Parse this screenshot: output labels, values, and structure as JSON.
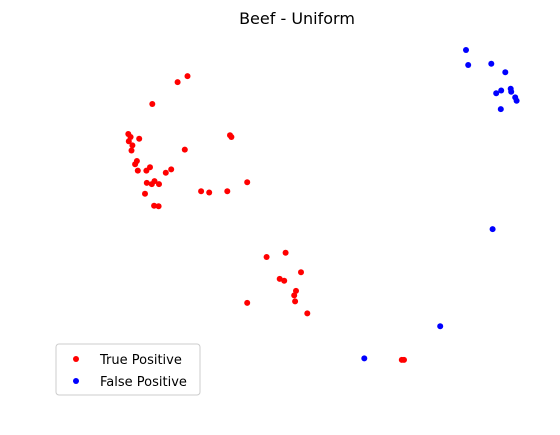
{
  "chart_data": {
    "type": "scatter",
    "title": "Beef - Uniform",
    "xlabel": "",
    "ylabel": "",
    "axes_visible": false,
    "grid": false,
    "xlim": [
      0,
      100
    ],
    "ylim": [
      0,
      100
    ],
    "legend_position": "lower-left",
    "series": [
      {
        "name": "True Positive",
        "color": "#ff0000",
        "points": [
          [
            12.9,
            72.0
          ],
          [
            13.4,
            71.0
          ],
          [
            13.0,
            69.6
          ],
          [
            13.8,
            68.2
          ],
          [
            13.6,
            66.5
          ],
          [
            15.3,
            70.4
          ],
          [
            14.8,
            63.0
          ],
          [
            14.4,
            61.9
          ],
          [
            15.0,
            59.8
          ],
          [
            16.9,
            59.8
          ],
          [
            17.7,
            60.9
          ],
          [
            18.7,
            56.3
          ],
          [
            17.0,
            55.7
          ],
          [
            18.1,
            55.3
          ],
          [
            19.7,
            55.3
          ],
          [
            16.6,
            52.1
          ],
          [
            21.2,
            59.1
          ],
          [
            22.4,
            60.2
          ],
          [
            25.4,
            66.8
          ],
          [
            18.6,
            48.1
          ],
          [
            19.6,
            47.9
          ],
          [
            18.2,
            82.0
          ],
          [
            23.8,
            89.3
          ],
          [
            26.0,
            91.3
          ],
          [
            35.4,
            71.6
          ],
          [
            35.7,
            71.0
          ],
          [
            29.0,
            52.9
          ],
          [
            30.8,
            52.5
          ],
          [
            34.8,
            52.9
          ],
          [
            39.2,
            55.9
          ],
          [
            43.5,
            31.0
          ],
          [
            47.7,
            32.4
          ],
          [
            46.4,
            23.7
          ],
          [
            47.4,
            23.1
          ],
          [
            51.1,
            25.9
          ],
          [
            50.0,
            19.7
          ],
          [
            49.6,
            18.2
          ],
          [
            49.8,
            16.2
          ],
          [
            52.5,
            12.2
          ],
          [
            39.2,
            15.7
          ],
          [
            73.4,
            -3.3
          ],
          [
            73.9,
            -3.3
          ]
        ]
      },
      {
        "name": "False Positive",
        "color": "#0000ff",
        "points": [
          [
            87.6,
            100.0
          ],
          [
            88.1,
            95.0
          ],
          [
            93.2,
            95.4
          ],
          [
            96.3,
            92.6
          ],
          [
            97.5,
            87.1
          ],
          [
            97.6,
            86.1
          ],
          [
            95.4,
            86.5
          ],
          [
            94.3,
            85.6
          ],
          [
            98.5,
            84.2
          ],
          [
            98.8,
            83.1
          ],
          [
            95.3,
            80.3
          ],
          [
            93.5,
            40.3
          ],
          [
            81.9,
            7.9
          ],
          [
            65.1,
            -2.8
          ]
        ]
      }
    ]
  }
}
